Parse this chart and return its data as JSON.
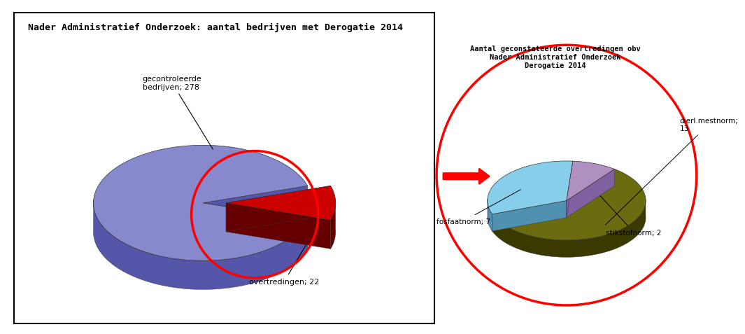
{
  "title": "Nader Administratief Onderzoek: aantal bedrijven met Derogatie 2014",
  "left_pie": {
    "values": [
      256,
      22
    ],
    "total": 278,
    "colors": [
      "#8888CC",
      "#CC0000"
    ],
    "side_colors": [
      "#5555AA",
      "#660000"
    ],
    "explode_dist": 0.08
  },
  "right_pie": {
    "title": "Aantal geconstateerde overtredingen obv\nNader Administratief Onderzoek\nDerogatie 2014",
    "values": [
      13,
      2,
      7
    ],
    "labels": [
      "dierl.mestnorm;\n13",
      "stikstofnorm; 2",
      "fosfaatnorm; 7"
    ],
    "colors": [
      "#6B6B10",
      "#B090C0",
      "#87CEEB"
    ],
    "side_colors": [
      "#3A3A00",
      "#8060A0",
      "#5090B0"
    ]
  },
  "background_color": "#ffffff",
  "border_color": "#000000",
  "circle_color": "#ff0000",
  "arrow_color": "#ff0000"
}
